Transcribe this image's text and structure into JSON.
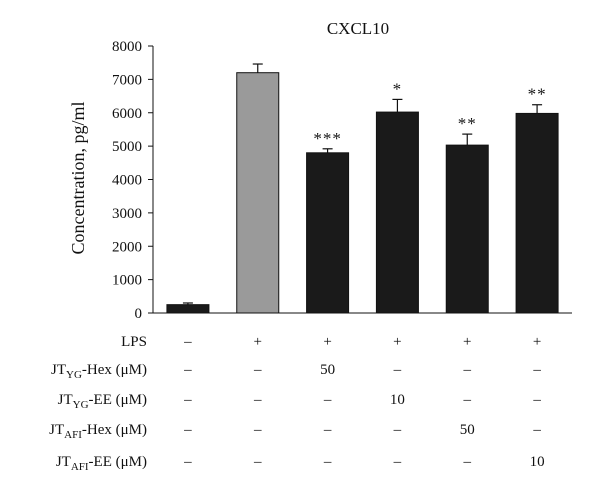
{
  "chart_data": {
    "type": "bar",
    "title": "CXCL10",
    "ylabel": "Concentration, pg/ml",
    "ylim": [
      0,
      8000
    ],
    "yticks": [
      0,
      1000,
      2000,
      3000,
      4000,
      5000,
      6000,
      7000,
      8000
    ],
    "grid": false,
    "legend": "none",
    "bars": [
      {
        "value": 250,
        "error": 50,
        "color": "#1a1a1a",
        "sig": ""
      },
      {
        "value": 7200,
        "error": 260,
        "color": "#9a9a9a",
        "sig": ""
      },
      {
        "value": 4800,
        "error": 120,
        "color": "#1a1a1a",
        "sig": "***"
      },
      {
        "value": 6020,
        "error": 380,
        "color": "#1a1a1a",
        "sig": "*"
      },
      {
        "value": 5030,
        "error": 330,
        "color": "#1a1a1a",
        "sig": "**"
      },
      {
        "value": 5980,
        "error": 260,
        "color": "#1a1a1a",
        "sig": "**"
      }
    ],
    "conditions": [
      {
        "label": "LPS",
        "sub": "",
        "suffix": "",
        "values": [
          "–",
          "+",
          "+",
          "+",
          "+",
          "+"
        ]
      },
      {
        "label": "JT",
        "sub": "YG",
        "suffix": "-Hex (μM)",
        "values": [
          "–",
          "–",
          "50",
          "–",
          "–",
          "–"
        ]
      },
      {
        "label": "JT",
        "sub": "YG",
        "suffix": "-EE (μM)",
        "values": [
          "–",
          "–",
          "–",
          "10",
          "–",
          "–"
        ]
      },
      {
        "label": "JT",
        "sub": "AFI",
        "suffix": "-Hex (μM)",
        "values": [
          "–",
          "–",
          "–",
          "–",
          "50",
          "–"
        ]
      },
      {
        "label": "JT",
        "sub": "AFI",
        "suffix": "-EE (μM)",
        "values": [
          "–",
          "–",
          "–",
          "–",
          "–",
          "10"
        ]
      }
    ]
  }
}
